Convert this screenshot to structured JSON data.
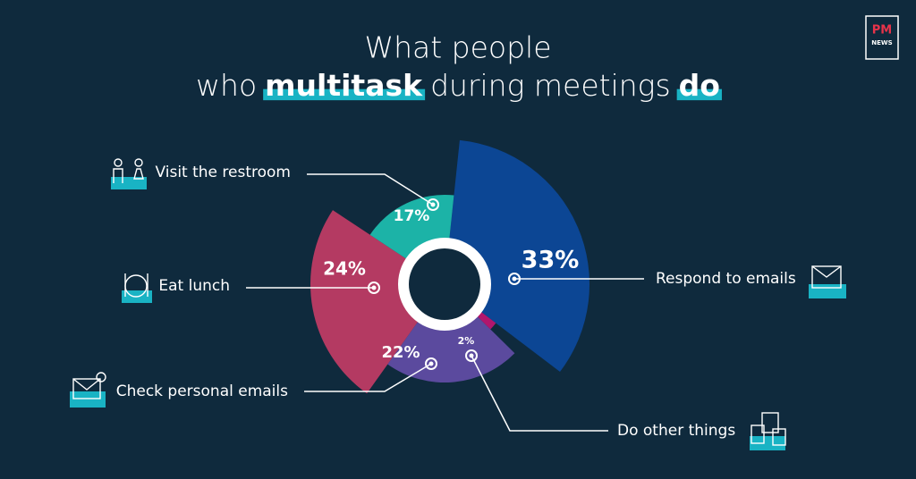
{
  "logo": {
    "top": "PM",
    "bottom": "NEWS"
  },
  "chart_data": {
    "type": "pie",
    "title_line1": "What people",
    "title_line2": [
      "who",
      "multitask",
      "during meetings",
      "do"
    ],
    "categories": [
      "Respond to emails",
      "Do other things",
      "Check personal emails",
      "Eat lunch",
      "Visit the restroom"
    ],
    "values": [
      33,
      2,
      22,
      24,
      17
    ],
    "value_labels": [
      "33%",
      "2%",
      "22%",
      "24%",
      "17%"
    ],
    "colors": [
      "#0c4694",
      "#b0166d",
      "#5b4a9e",
      "#b43a62",
      "#1cb3a7"
    ]
  }
}
